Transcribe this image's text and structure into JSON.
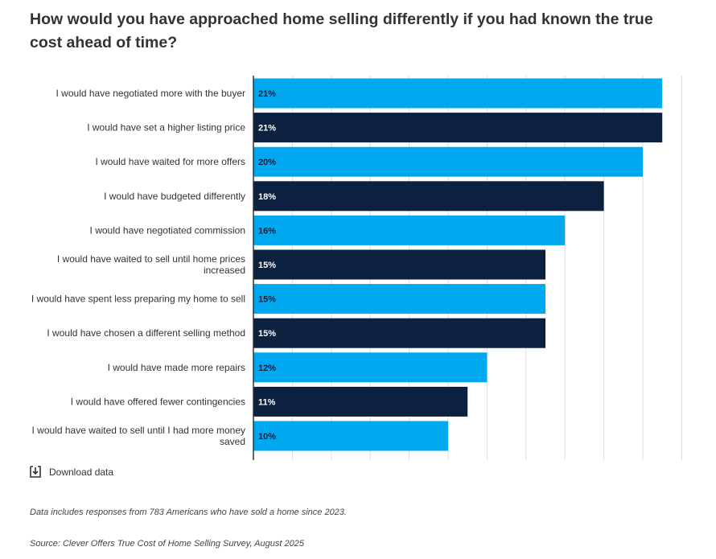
{
  "title": "How would you have approached home selling differently if you had known the true cost ahead of time?",
  "download_label": "Download data",
  "note": "Data includes responses from 783 Americans who have sold a home since 2023.",
  "source": "Source: Clever Offers True Cost of Home Selling Survey, August 2025",
  "colors": {
    "light": "#00A8F0",
    "dark": "#0B213F",
    "grid": "#dddddd",
    "axis": "#333333"
  },
  "chart_data": {
    "type": "bar",
    "orientation": "horizontal",
    "categories": [
      [
        "I would have negotiated more with the buyer"
      ],
      [
        "I would have set a higher listing price"
      ],
      [
        "I would have waited for more offers"
      ],
      [
        "I would have budgeted differently"
      ],
      [
        "I would have negotiated commission"
      ],
      [
        "I would have waited to sell until home prices",
        "increased"
      ],
      [
        "I would have spent less preparing my home to sell"
      ],
      [
        "I would have chosen a different selling method"
      ],
      [
        "I would have made more repairs"
      ],
      [
        "I would have offered fewer contingencies"
      ],
      [
        "I would have waited to sell until I had more money",
        "saved"
      ]
    ],
    "values": [
      21,
      21,
      20,
      18,
      16,
      15,
      15,
      15,
      12,
      11,
      10
    ],
    "data_labels": [
      "21%",
      "21%",
      "20%",
      "18%",
      "16%",
      "15%",
      "15%",
      "15%",
      "12%",
      "11%",
      "10%"
    ],
    "xlim": [
      0,
      22
    ],
    "grid": true,
    "legend": "none"
  }
}
